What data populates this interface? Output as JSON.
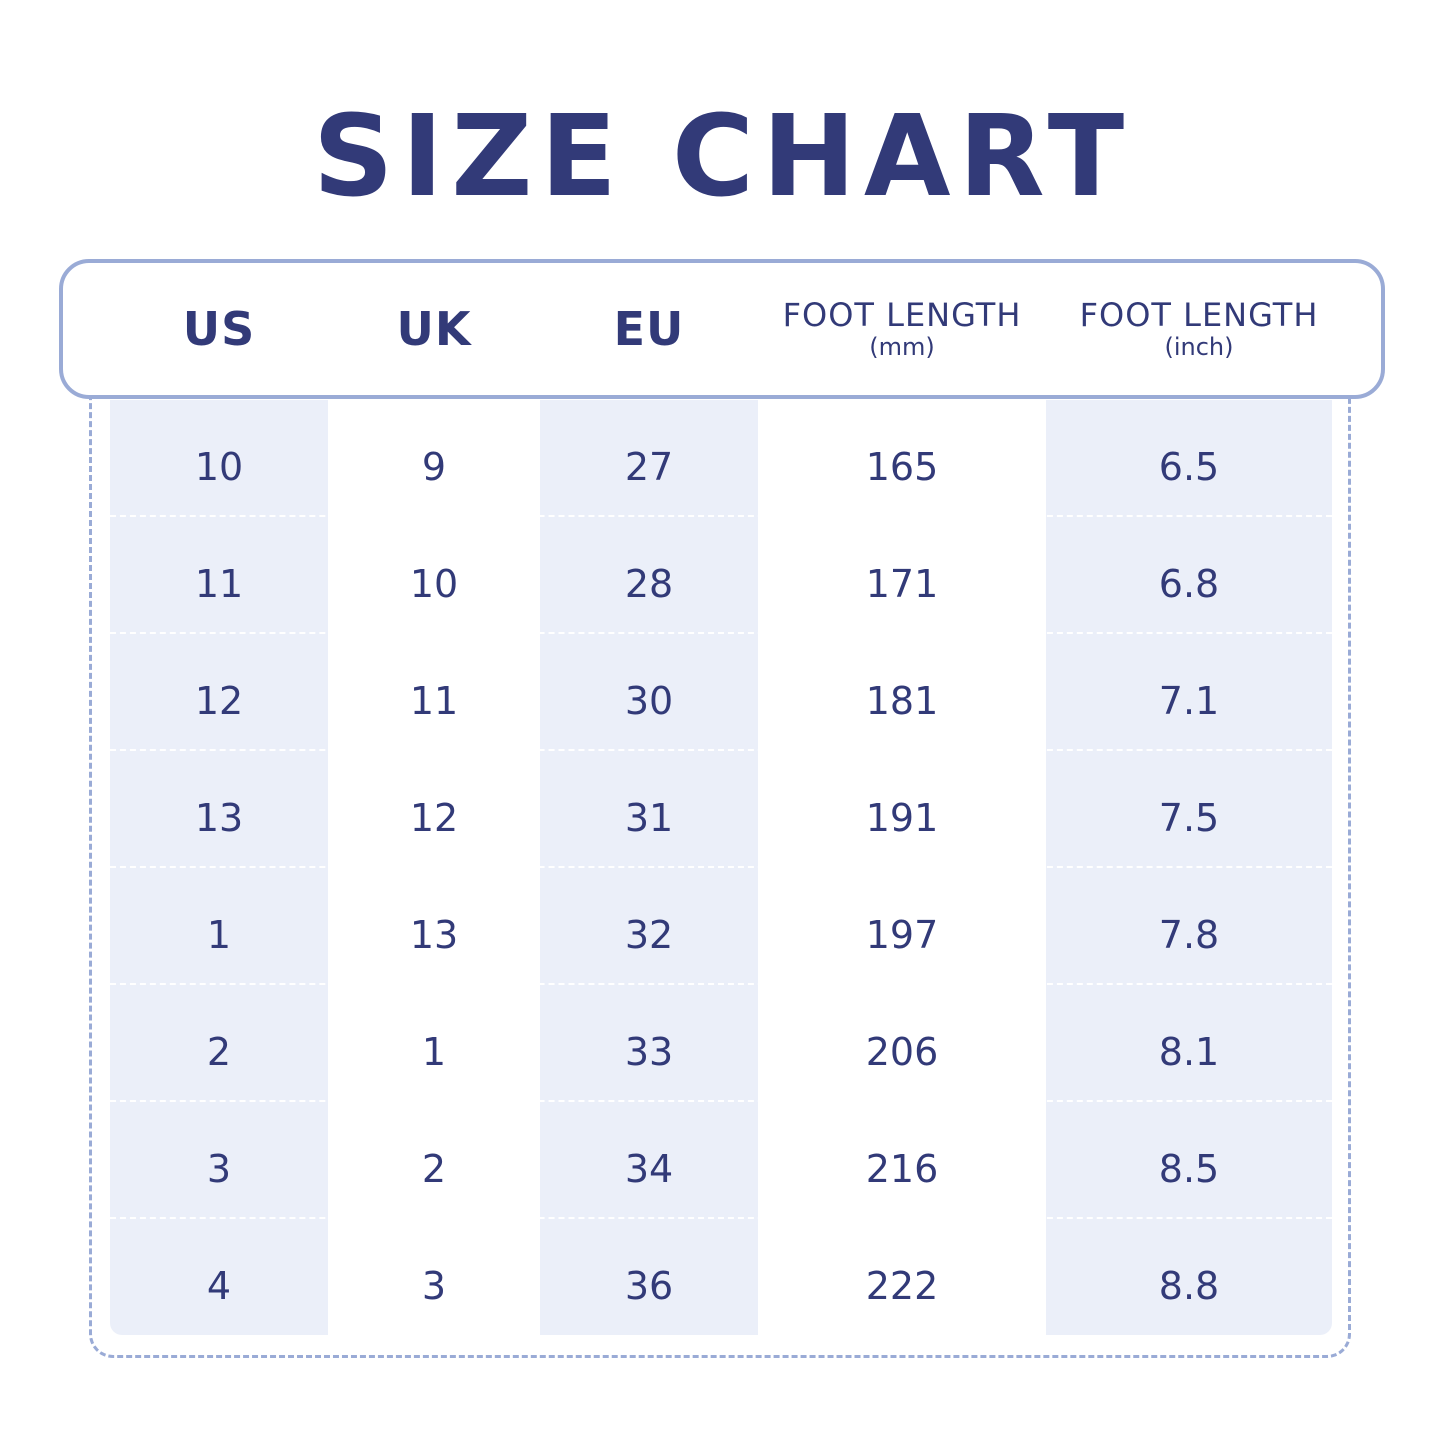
{
  "title": "SIZE CHART",
  "colors": {
    "text": "#323a78",
    "accent_border": "#9aabd6",
    "column_fill": "#ebeff9"
  },
  "headers": [
    {
      "main": "US",
      "sub": ""
    },
    {
      "main": "UK",
      "sub": ""
    },
    {
      "main": "EU",
      "sub": ""
    },
    {
      "main": "FOOT LENGTH",
      "sub": "(mm)"
    },
    {
      "main": "FOOT LENGTH",
      "sub": "(inch)"
    }
  ],
  "chart_data": {
    "type": "table",
    "title": "SIZE CHART",
    "columns": [
      "US",
      "UK",
      "EU",
      "FOOT LENGTH (mm)",
      "FOOT LENGTH (inch)"
    ],
    "rows": [
      [
        "10",
        "9",
        "27",
        "165",
        "6.5"
      ],
      [
        "11",
        "10",
        "28",
        "171",
        "6.8"
      ],
      [
        "12",
        "11",
        "30",
        "181",
        "7.1"
      ],
      [
        "13",
        "12",
        "31",
        "191",
        "7.5"
      ],
      [
        "1",
        "13",
        "32",
        "197",
        "7.8"
      ],
      [
        "2",
        "1",
        "33",
        "206",
        "8.1"
      ],
      [
        "3",
        "2",
        "34",
        "216",
        "8.5"
      ],
      [
        "4",
        "3",
        "36",
        "222",
        "8.8"
      ]
    ]
  }
}
